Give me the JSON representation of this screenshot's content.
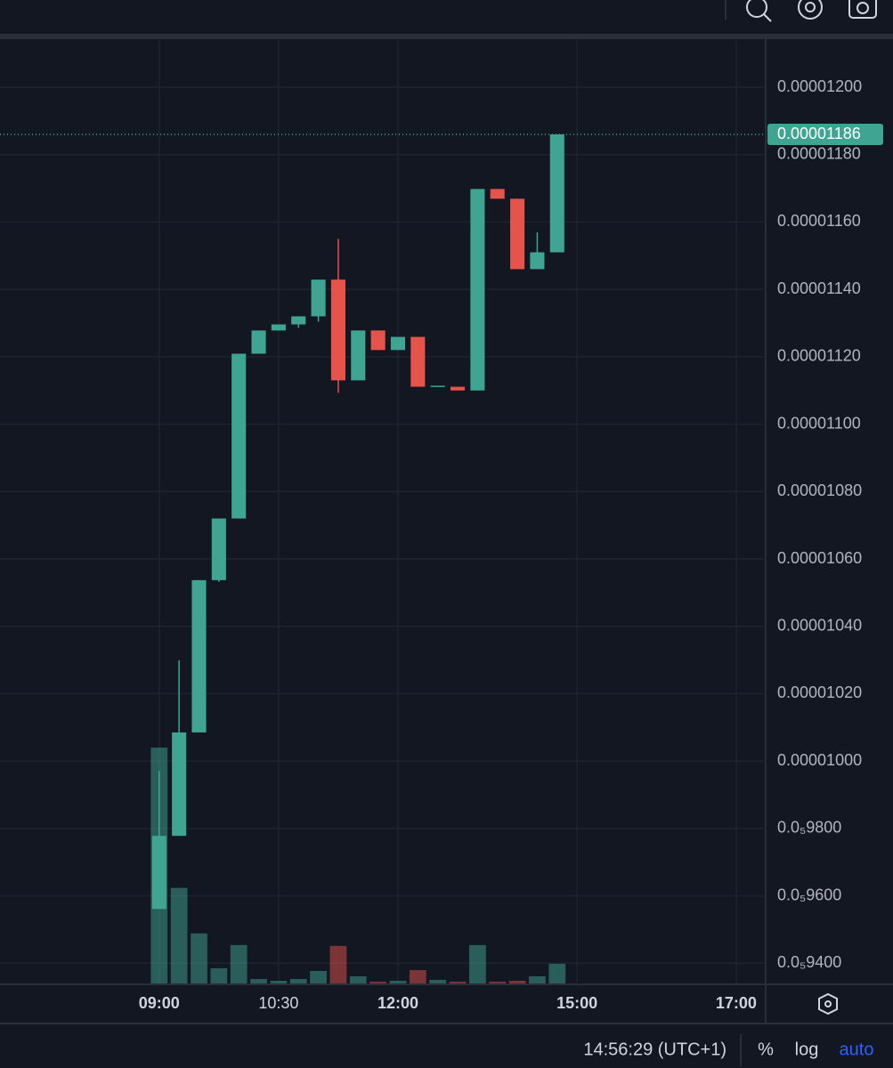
{
  "chart_data": {
    "type": "candlestick",
    "open": [
      9.561e-06,
      9.778e-06,
      1.0085e-05,
      1.0537e-05,
      1.072e-05,
      1.1209e-05,
      1.1278e-05,
      1.1296e-05,
      1.132e-05,
      1.1429e-05,
      1.113e-05,
      1.1278e-05,
      1.122e-05,
      1.1259e-05,
      1.1111e-05,
      1.1111e-05,
      1.11e-05,
      1.1698e-05,
      1.1669e-05,
      1.146e-05,
      1.151e-05
    ],
    "high": [
      9.971e-06,
      1.0299e-05,
      1.0537e-05,
      1.072e-05,
      1.1209e-05,
      1.1278e-05,
      1.1296e-05,
      1.132e-05,
      1.1429e-05,
      1.155e-05,
      1.1278e-05,
      1.1278e-05,
      1.1259e-05,
      1.1259e-05,
      1.1114e-05,
      1.1111e-05,
      1.1698e-05,
      1.1698e-05,
      1.1669e-05,
      1.1569e-05,
      1.186e-05
    ],
    "low": [
      9.561e-06,
      9.778e-06,
      1.0085e-05,
      1.0532e-05,
      1.072e-05,
      1.1209e-05,
      1.1278e-05,
      1.1286e-05,
      1.1304e-05,
      1.1093e-05,
      1.113e-05,
      1.122e-05,
      1.122e-05,
      1.1111e-05,
      1.1111e-05,
      1.11e-05,
      1.11e-05,
      1.1669e-05,
      1.146e-05,
      1.146e-05,
      1.151e-05
    ],
    "close": [
      9.778e-06,
      1.0085e-05,
      1.0537e-05,
      1.072e-05,
      1.1209e-05,
      1.1278e-05,
      1.1296e-05,
      1.132e-05,
      1.1429e-05,
      1.113e-05,
      1.1278e-05,
      1.122e-05,
      1.1259e-05,
      1.1111e-05,
      1.1114e-05,
      1.11e-05,
      1.1698e-05,
      1.1669e-05,
      1.146e-05,
      1.151e-05,
      1.186e-05
    ],
    "volume": [
      264,
      107,
      56,
      17,
      43,
      5,
      3,
      5,
      14,
      42,
      8,
      2,
      3,
      15,
      4,
      2,
      43,
      2,
      3,
      8,
      22
    ],
    "up_color": "#3fa592",
    "down_color": "#e5534b",
    "ylim": [
      9.34e-06,
      1.214e-05
    ],
    "yticks": [
      {
        "value": 1.2e-05,
        "label": "0.00001200"
      },
      {
        "value": 1.18e-05,
        "label": "0.00001180"
      },
      {
        "value": 1.16e-05,
        "label": "0.00001160"
      },
      {
        "value": 1.14e-05,
        "label": "0.00001140"
      },
      {
        "value": 1.12e-05,
        "label": "0.00001120"
      },
      {
        "value": 1.1e-05,
        "label": "0.00001100"
      },
      {
        "value": 1.08e-05,
        "label": "0.00001080"
      },
      {
        "value": 1.06e-05,
        "label": "0.00001060"
      },
      {
        "value": 1.04e-05,
        "label": "0.00001040"
      },
      {
        "value": 1.02e-05,
        "label": "0.00001020"
      },
      {
        "value": 1e-05,
        "label": "0.00001000"
      },
      {
        "value": 9.8e-06,
        "label": "0.0₅9800"
      },
      {
        "value": 9.6e-06,
        "label": "0.0₅9600"
      },
      {
        "value": 9.4e-06,
        "label": "0.0₅9400"
      }
    ],
    "xlim": [
      -8,
      30.48
    ],
    "xticks": [
      {
        "value": 0,
        "label": "09:00"
      },
      {
        "value": 6,
        "label": "10:30"
      },
      {
        "value": 12,
        "label": "12:00"
      },
      {
        "value": 21,
        "label": "15:00"
      },
      {
        "value": 29,
        "label": "17:00"
      }
    ],
    "last_price": {
      "value": 1.186e-05,
      "label": "0.00001186"
    },
    "grid": true,
    "log_scale": false
  },
  "footer": {
    "time": "14:56:29 (UTC+1)",
    "percent": "%",
    "log": "log",
    "auto": "auto"
  }
}
